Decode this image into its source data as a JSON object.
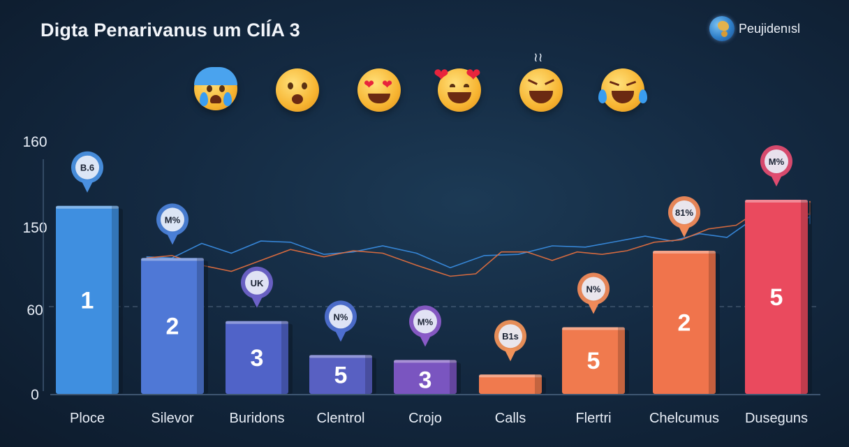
{
  "title": "Digta Penarivanus um CIÍA  3",
  "brand": {
    "name": "Peujidenısl",
    "logo_icon": "globe-icon"
  },
  "emojis": [
    "crying-face",
    "worried-face",
    "heart-eyes-face",
    "smiling-face-with-hearts",
    "laughing-squint-face",
    "tears-of-joy-face"
  ],
  "colors": {
    "blue": "#3f8fe0",
    "indigo": "#5063c8",
    "purple": "#7a55c0",
    "orange": "#f07a4e",
    "red": "#ea4a5e",
    "line_blue": "#3a8fe6",
    "line_orange": "#e8703e"
  },
  "chart_data": {
    "type": "bar",
    "title": "Digta Penarivanus um CIÍA  3",
    "yticks": [
      "160",
      "150",
      "60",
      "0"
    ],
    "categories": [
      "Ploce",
      "Silevor",
      "Buridons",
      "Clentrol",
      "Crojo",
      "Calls",
      "Flertri",
      "Chelcumus",
      "Duseguns"
    ],
    "bar_values": [
      155,
      112,
      60,
      32,
      28,
      16,
      55,
      118,
      160
    ],
    "bar_labels": [
      "1",
      "2",
      "3",
      "5",
      "3",
      "",
      "5",
      "2",
      "5"
    ],
    "pin_labels": [
      "B.6",
      "M%",
      "UK",
      "N%",
      "M%",
      "B1s",
      "N%",
      "81%",
      "M%"
    ],
    "bar_colors": [
      "#3f8fe0",
      "#4f78d6",
      "#5063c8",
      "#5860c2",
      "#7a55c0",
      "#f07a4e",
      "#f07a4e",
      "#f0744c",
      "#ea4a5e"
    ],
    "pin_colors": [
      "#4a90e0",
      "#4a7fd6",
      "#6d62c8",
      "#4e6fd0",
      "#8a5bc8",
      "#f0925a",
      "#f08a5a",
      "#f08a5a",
      "#e04c70"
    ],
    "reference_line": 60,
    "ylim": [
      0,
      160
    ],
    "lines": [
      {
        "color": "#3a8fe6",
        "x": [
          0.3,
          0.6,
          0.95,
          1.3,
          1.65,
          2.0,
          2.4,
          2.75,
          3.1,
          3.5,
          3.9,
          4.3,
          4.7,
          5.1,
          5.5,
          5.9,
          6.2,
          6.5,
          6.8,
          7.1,
          7.4,
          7.7,
          8.0,
          8.2,
          8.5,
          8.7
        ],
        "y": [
          113,
          112,
          124,
          116,
          126,
          125,
          115,
          117,
          122,
          116,
          104,
          114,
          115,
          122,
          121,
          126,
          130,
          126,
          132,
          129,
          145,
          133,
          146,
          140,
          150,
          150
        ]
      },
      {
        "color": "#e8703e",
        "x": [
          0.3,
          0.6,
          0.95,
          1.3,
          1.65,
          2.0,
          2.4,
          2.75,
          3.1,
          3.5,
          3.9,
          4.2,
          4.5,
          4.8,
          5.1,
          5.4,
          5.7,
          6.0,
          6.3,
          6.6,
          6.9,
          7.2,
          7.5,
          7.8,
          8.1,
          8.4,
          8.6,
          8.8
        ],
        "y": [
          112,
          114,
          106,
          101,
          110,
          119,
          113,
          118,
          116,
          106,
          97,
          99,
          117,
          117,
          110,
          117,
          115,
          118,
          125,
          127,
          136,
          139,
          154,
          150,
          148,
          152,
          159,
          150
        ]
      }
    ]
  }
}
